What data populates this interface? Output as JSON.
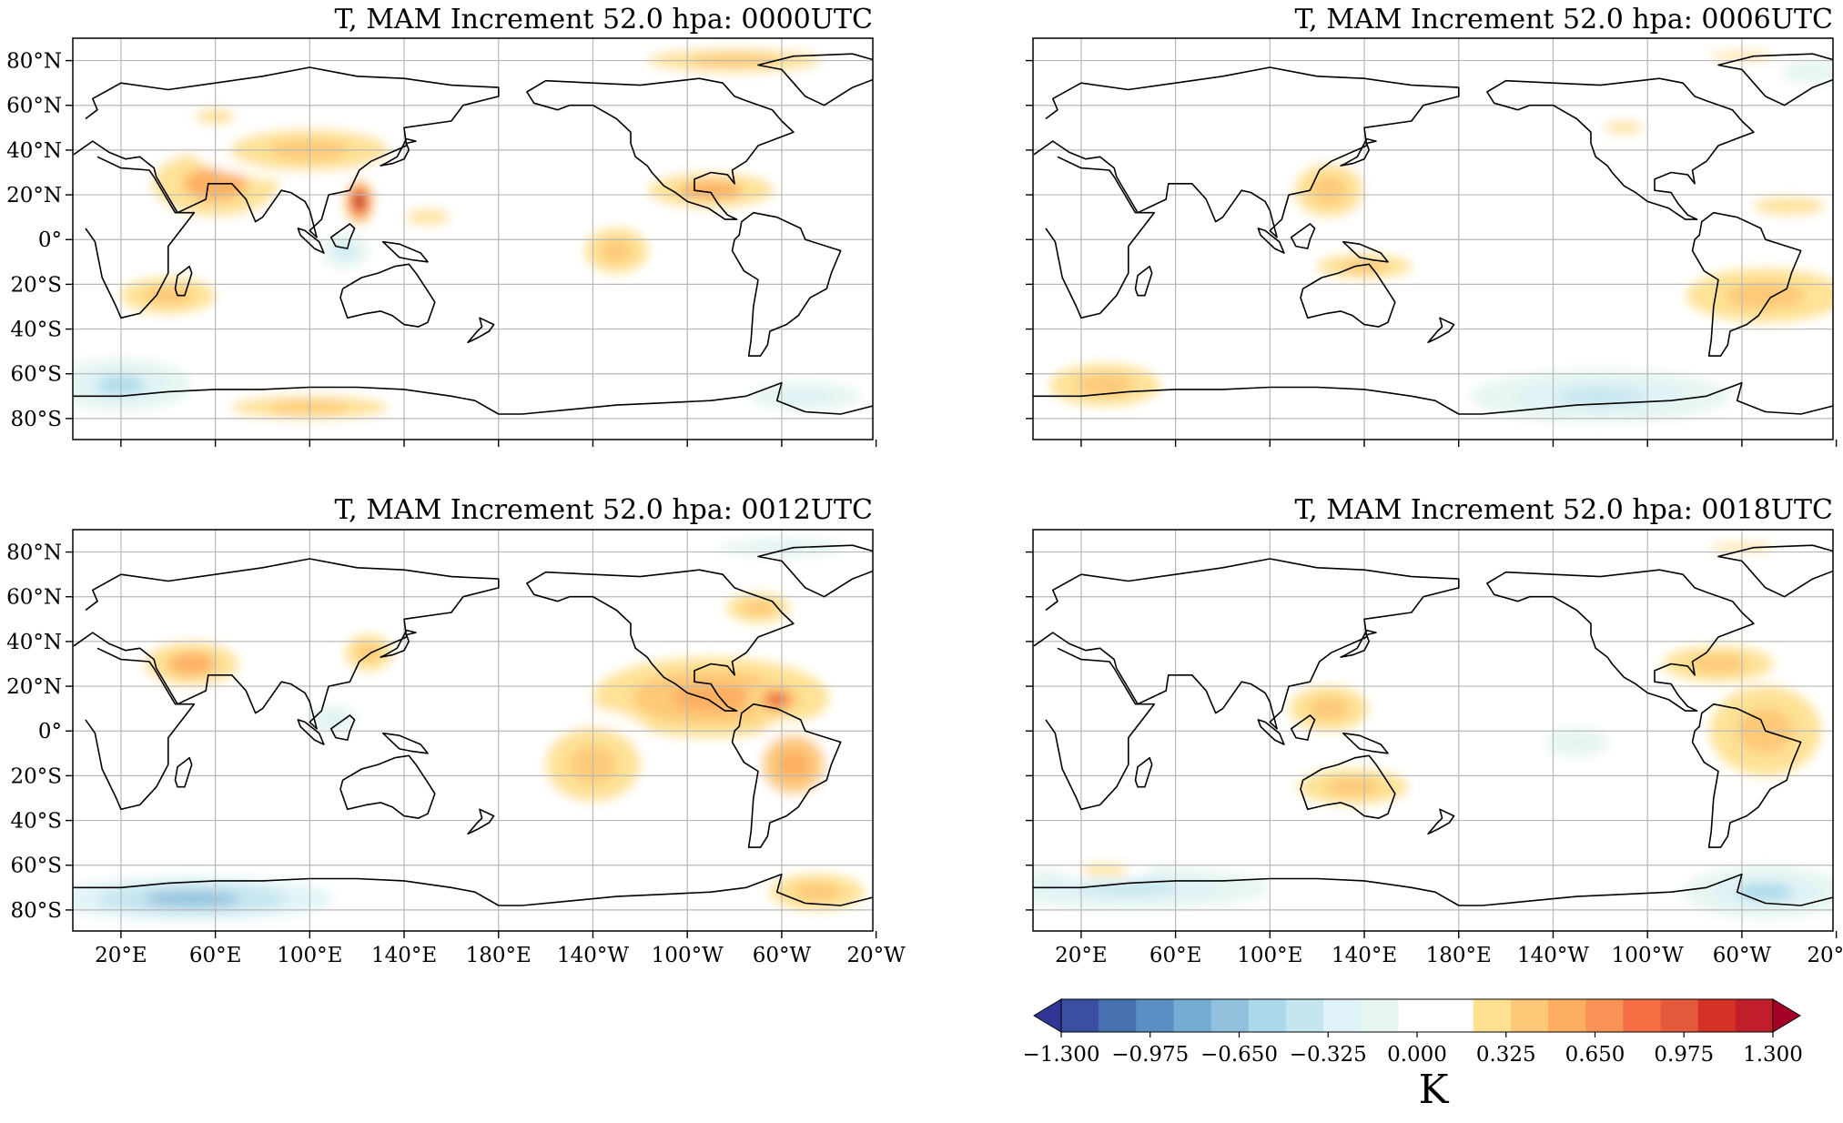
{
  "panels": [
    {
      "title": "T, MAM Increment 52.0 hpa: 0000UTC"
    },
    {
      "title": "T, MAM Increment 52.0 hpa: 0006UTC"
    },
    {
      "title": "T, MAM Increment 52.0 hpa: 0012UTC"
    },
    {
      "title": "T, MAM Increment 52.0 hpa: 0018UTC"
    }
  ],
  "lat_ticks": [
    "80°N",
    "60°N",
    "40°N",
    "20°N",
    "0°",
    "20°S",
    "40°S",
    "60°S",
    "80°S"
  ],
  "lon_ticks": [
    "20°E",
    "60°E",
    "100°E",
    "140°E",
    "180°E",
    "140°W",
    "100°W",
    "60°W",
    "20°W"
  ],
  "colorbar": {
    "unit": "K",
    "tick_labels": [
      "−1.300",
      "−0.975",
      "−0.650",
      "−0.325",
      "0.000",
      "0.325",
      "0.650",
      "0.975",
      "1.300"
    ],
    "colors": [
      "#313695",
      "#3a4fa0",
      "#4672b2",
      "#5b8fc3",
      "#74add1",
      "#91c0dc",
      "#abd9e9",
      "#c5e5ef",
      "#e0f3f8",
      "#e6f5ee",
      "#ffffff",
      "#ffffff",
      "#fee090",
      "#fdc877",
      "#fdae61",
      "#f99255",
      "#f46d43",
      "#e55a3b",
      "#d73027",
      "#c11e2c",
      "#a50026"
    ],
    "extend": "both"
  },
  "anomalies": [
    [
      {
        "lon": 60,
        "lat": 25,
        "rx": 40,
        "ry": 22,
        "v": 0.5
      },
      {
        "lon": 100,
        "lat": 40,
        "rx": 50,
        "ry": 14,
        "v": 0.4
      },
      {
        "lon": 121,
        "lat": 17,
        "rx": 6,
        "ry": 10,
        "v": 1.3
      },
      {
        "lon": -90,
        "lat": 22,
        "rx": 40,
        "ry": 12,
        "v": 0.5
      },
      {
        "lon": 150,
        "lat": 10,
        "rx": 28,
        "ry": 10,
        "v": 0.3
      },
      {
        "lon": -80,
        "lat": 80,
        "rx": 55,
        "ry": 8,
        "v": 0.4
      },
      {
        "lon": 40,
        "lat": -25,
        "rx": 30,
        "ry": 12,
        "v": 0.35
      },
      {
        "lon": -130,
        "lat": -5,
        "rx": 20,
        "ry": 15,
        "v": 0.35
      },
      {
        "lon": 115,
        "lat": -5,
        "rx": 10,
        "ry": 8,
        "v": -0.45
      },
      {
        "lon": 20,
        "lat": -65,
        "rx": 30,
        "ry": 12,
        "v": -0.5
      },
      {
        "lon": 100,
        "lat": -75,
        "rx": 50,
        "ry": 8,
        "v": 0.4
      },
      {
        "lon": -50,
        "lat": -70,
        "rx": 35,
        "ry": 10,
        "v": -0.3
      },
      {
        "lon": 60,
        "lat": 55,
        "rx": 25,
        "ry": 10,
        "v": 0.3
      }
    ],
    [
      {
        "lon": 125,
        "lat": 22,
        "rx": 22,
        "ry": 18,
        "v": 0.4
      },
      {
        "lon": 140,
        "lat": -12,
        "rx": 30,
        "ry": 8,
        "v": 0.35
      },
      {
        "lon": -50,
        "lat": -25,
        "rx": 50,
        "ry": 18,
        "v": 0.35
      },
      {
        "lon": -40,
        "lat": 15,
        "rx": 45,
        "ry": 12,
        "v": 0.3
      },
      {
        "lon": -110,
        "lat": 50,
        "rx": 25,
        "ry": 8,
        "v": 0.3
      },
      {
        "lon": -120,
        "lat": -70,
        "rx": 55,
        "ry": 12,
        "v": -0.4
      },
      {
        "lon": 30,
        "lat": -65,
        "rx": 35,
        "ry": 14,
        "v": 0.35
      },
      {
        "lon": -60,
        "lat": 82,
        "rx": 40,
        "ry": 6,
        "v": 0.3
      },
      {
        "lon": -30,
        "lat": 75,
        "rx": 20,
        "ry": 8,
        "v": -0.2
      }
    ],
    [
      {
        "lon": -90,
        "lat": 15,
        "rx": 50,
        "ry": 18,
        "v": 0.6
      },
      {
        "lon": -62,
        "lat": 14,
        "rx": 12,
        "ry": 8,
        "v": 0.9
      },
      {
        "lon": -55,
        "lat": -15,
        "rx": 20,
        "ry": 20,
        "v": 0.55
      },
      {
        "lon": -140,
        "lat": -15,
        "rx": 30,
        "ry": 25,
        "v": 0.4
      },
      {
        "lon": 50,
        "lat": 30,
        "rx": 30,
        "ry": 15,
        "v": 0.5
      },
      {
        "lon": 125,
        "lat": 35,
        "rx": 15,
        "ry": 12,
        "v": 0.35
      },
      {
        "lon": 50,
        "lat": -75,
        "rx": 60,
        "ry": 10,
        "v": -0.7
      },
      {
        "lon": -45,
        "lat": -72,
        "rx": 30,
        "ry": 12,
        "v": 0.35
      },
      {
        "lon": -60,
        "lat": 82,
        "rx": 40,
        "ry": 6,
        "v": -0.3
      },
      {
        "lon": -70,
        "lat": 55,
        "rx": 20,
        "ry": 10,
        "v": 0.35
      },
      {
        "lon": 110,
        "lat": 5,
        "rx": 15,
        "ry": 10,
        "v": -0.3
      }
    ],
    [
      {
        "lon": -50,
        "lat": 0,
        "rx": 35,
        "ry": 30,
        "v": 0.35
      },
      {
        "lon": -70,
        "lat": 30,
        "rx": 35,
        "ry": 12,
        "v": 0.35
      },
      {
        "lon": 125,
        "lat": 10,
        "rx": 25,
        "ry": 15,
        "v": 0.35
      },
      {
        "lon": 135,
        "lat": -25,
        "rx": 35,
        "ry": 12,
        "v": 0.35
      },
      {
        "lon": 40,
        "lat": -70,
        "rx": 60,
        "ry": 10,
        "v": -0.4
      },
      {
        "lon": -50,
        "lat": -72,
        "rx": 35,
        "ry": 12,
        "v": -0.5
      },
      {
        "lon": -130,
        "lat": -5,
        "rx": 20,
        "ry": 10,
        "v": -0.2
      },
      {
        "lon": 30,
        "lat": -62,
        "rx": 30,
        "ry": 8,
        "v": 0.3
      },
      {
        "lon": -60,
        "lat": 82,
        "rx": 40,
        "ry": 6,
        "v": 0.3
      }
    ]
  ]
}
